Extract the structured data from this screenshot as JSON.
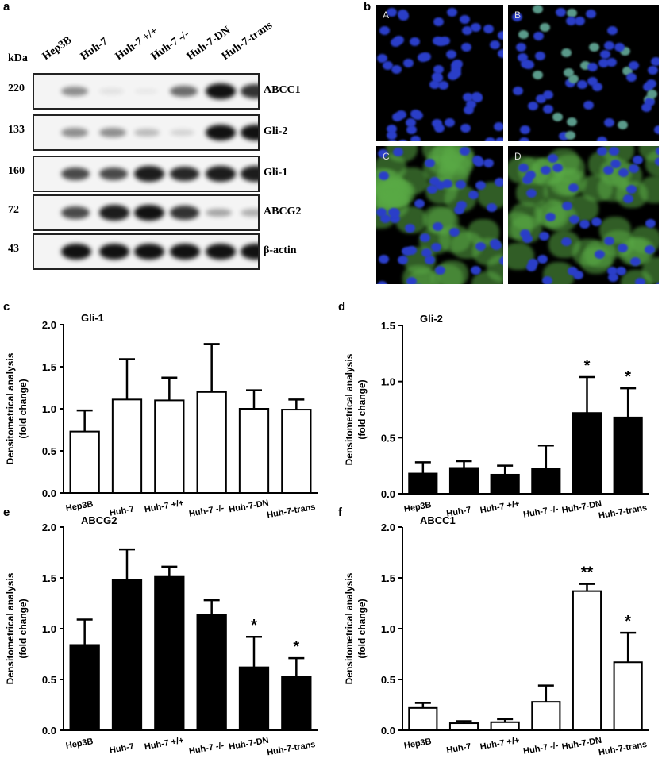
{
  "panel_letters": {
    "a": "a",
    "b": "b",
    "c": "c",
    "d": "d",
    "e": "e",
    "f": "f"
  },
  "blot": {
    "kda_label": "kDa",
    "lanes": [
      "Hep3B",
      "Huh-7",
      "Huh-7 +/+",
      "Huh-7 -/-",
      "Huh-7-DN",
      "Huh-7-trans"
    ],
    "rows": [
      {
        "kda": "220",
        "protein": "ABCC1",
        "intensity": [
          0.45,
          0.08,
          0.03,
          0.6,
          1,
          0.85
        ]
      },
      {
        "kda": "133",
        "protein": "Gli-2",
        "intensity": [
          0.45,
          0.45,
          0.25,
          0.15,
          1,
          1
        ]
      },
      {
        "kda": "160",
        "protein": "Gli-1",
        "intensity": [
          0.75,
          0.75,
          0.95,
          0.9,
          0.95,
          0.95
        ]
      },
      {
        "kda": "72",
        "protein": "ABCG2",
        "intensity": [
          0.75,
          0.95,
          1,
          0.85,
          0.35,
          0.3
        ]
      },
      {
        "kda": "43",
        "protein": "β-actin",
        "intensity": [
          1,
          1,
          1,
          1,
          1,
          1
        ]
      }
    ]
  },
  "micrographs": [
    {
      "label": "A",
      "stain": "nuclear"
    },
    {
      "label": "B",
      "stain": "nuclear-weak"
    },
    {
      "label": "C",
      "stain": "membrane-green"
    },
    {
      "label": "D",
      "stain": "membrane-green"
    }
  ],
  "chart_data": [
    {
      "type": "bar",
      "panel": "c",
      "title": "Gli-1",
      "ylabel": "Densitometrical analysis\n(fold change)",
      "ylabel_lines": [
        "Densitometrical analysis",
        "(fold change)"
      ],
      "ylim": [
        0,
        2.0
      ],
      "yticks": [
        "0.0",
        "0.5",
        "1.0",
        "1.5",
        "2.0"
      ],
      "fill": "#ffffff",
      "categories": [
        "Hep3B",
        "Huh-7",
        "Huh-7 +/+",
        "Huh-7 -/-",
        "Huh-7-DN",
        "Huh-7-trans"
      ],
      "values": [
        0.73,
        1.11,
        1.1,
        1.2,
        1.0,
        0.99
      ],
      "error_upper": [
        0.98,
        1.59,
        1.37,
        1.77,
        1.22,
        1.11
      ],
      "annotations": [
        "",
        "",
        "",
        "",
        "",
        ""
      ]
    },
    {
      "type": "bar",
      "panel": "d",
      "title": "Gli-2",
      "ylabel_lines": [
        "Densitometrical analysis",
        "(fold change)"
      ],
      "ylim": [
        0,
        1.5
      ],
      "yticks": [
        "0.0",
        "0.5",
        "1.0",
        "1.5"
      ],
      "fill": "#000000",
      "categories": [
        "Hep3B",
        "Huh-7",
        "Huh-7 +/+",
        "Huh-7 -/-",
        "Huh-7-DN",
        "Huh-7-trans"
      ],
      "values": [
        0.18,
        0.23,
        0.17,
        0.22,
        0.72,
        0.68
      ],
      "error_upper": [
        0.28,
        0.29,
        0.25,
        0.43,
        1.04,
        0.94
      ],
      "annotations": [
        "",
        "",
        "",
        "",
        "*",
        "*"
      ]
    },
    {
      "type": "bar",
      "panel": "e",
      "title": "ABCG2",
      "ylabel_lines": [
        "Densitometrical analysis",
        "(fold change)"
      ],
      "ylim": [
        0,
        2.0
      ],
      "yticks": [
        "0.0",
        "0.5",
        "1.0",
        "1.5",
        "2.0"
      ],
      "fill": "#000000",
      "categories": [
        "Hep3B",
        "Huh-7",
        "Huh-7 +/+",
        "Huh-7 -/-",
        "Huh-7-DN",
        "Huh-7-trans"
      ],
      "values": [
        0.84,
        1.48,
        1.51,
        1.14,
        0.62,
        0.53
      ],
      "error_upper": [
        1.09,
        1.78,
        1.61,
        1.28,
        0.92,
        0.71
      ],
      "annotations": [
        "",
        "",
        "",
        "",
        "*",
        "*"
      ]
    },
    {
      "type": "bar",
      "panel": "f",
      "title": "ABCC1",
      "ylabel_lines": [
        "Densitometrical analysis",
        "(fold change)"
      ],
      "ylim": [
        0,
        2.0
      ],
      "yticks": [
        "0.0",
        "0.5",
        "1.0",
        "1.5",
        "2.0"
      ],
      "fill": "#ffffff",
      "categories": [
        "Hep3B",
        "Huh-7",
        "Huh-7 +/+",
        "Huh-7 -/-",
        "Huh-7-DN",
        "Huh-7-trans"
      ],
      "values": [
        0.22,
        0.07,
        0.08,
        0.28,
        1.37,
        0.67
      ],
      "error_upper": [
        0.27,
        0.09,
        0.11,
        0.44,
        1.44,
        0.96
      ],
      "annotations": [
        "",
        "",
        "",
        "",
        "**",
        "*"
      ]
    }
  ]
}
